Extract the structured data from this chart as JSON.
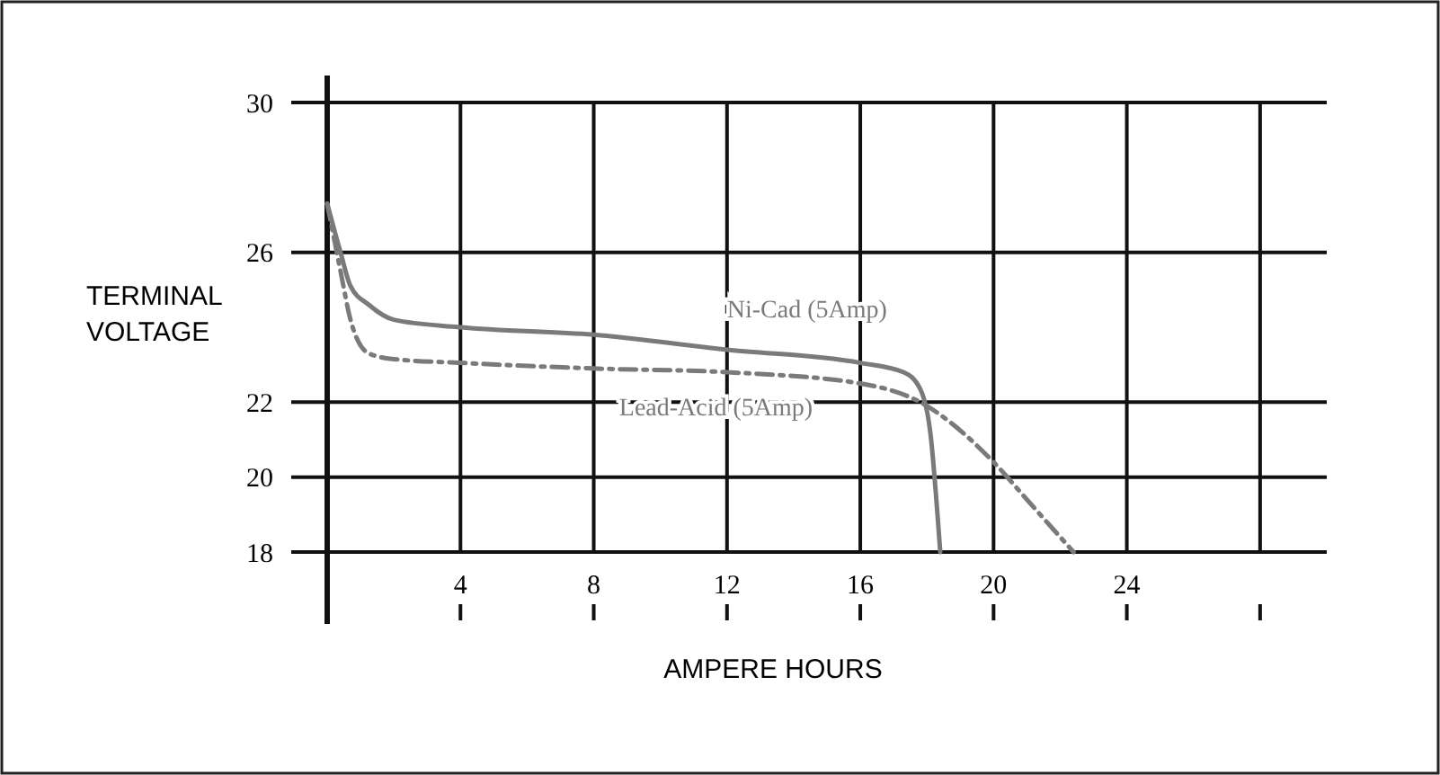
{
  "chart_data": {
    "type": "line",
    "xlabel": "AMPERE HOURS",
    "ylabel": "TERMINAL VOLTAGE",
    "xlim": [
      0,
      30
    ],
    "xticks": [
      4,
      8,
      12,
      16,
      20,
      24,
      {
        "value": 28,
        "label": null
      }
    ],
    "ylim": [
      18,
      30
    ],
    "yticks": [
      18,
      20,
      22,
      26,
      30
    ],
    "grid": true,
    "marker": "none",
    "series": [
      {
        "name": "Ni-Cad (5Amp)",
        "color": "#7a7a7a",
        "line_style": "solid",
        "x": [
          0,
          0.4,
          0.7,
          1.25,
          2,
          4,
          8,
          12,
          16,
          17.3,
          17.8,
          18.1,
          18.4
        ],
        "values": [
          27.3,
          26,
          25.1,
          24.6,
          24.2,
          24,
          23.8,
          23.4,
          23.05,
          22.8,
          22.35,
          21.2,
          18
        ]
      },
      {
        "name": "Lead-Acid (5Amp)",
        "color": "#7a7a7a",
        "line_style": "dashed",
        "x": [
          0,
          0.4,
          0.7,
          1.25,
          2,
          4,
          8,
          12,
          16,
          17.8,
          20,
          21,
          22.4
        ],
        "values": [
          27.3,
          25.5,
          24.2,
          23.3,
          23.15,
          23.05,
          22.9,
          22.8,
          22.5,
          22,
          20.4,
          19.4,
          18
        ]
      }
    ]
  }
}
